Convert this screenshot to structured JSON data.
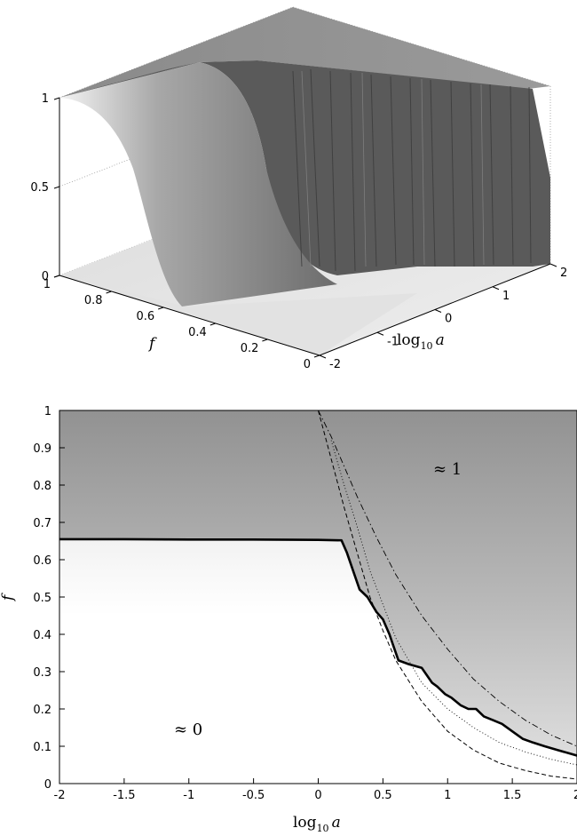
{
  "chart_data": [
    {
      "type": "surface",
      "x_axis": {
        "label_main": "log",
        "label_sub": "10",
        "label_var": "a",
        "ticks": [
          "-2",
          "-1",
          "0",
          "1",
          "2"
        ]
      },
      "y_axis": {
        "label": "f",
        "ticks": [
          "0",
          "0.2",
          "0.4",
          "0.6",
          "0.8",
          "1"
        ]
      },
      "z_axis": {
        "ticks": [
          "0",
          "0.5",
          "1"
        ]
      },
      "surface_description": [
        {
          "log10a": -2,
          "f_transition": 0.65
        },
        {
          "log10a": 0.2,
          "f_transition": 0.65
        },
        {
          "log10a": 0.5,
          "f_transition": 0.42
        },
        {
          "log10a": 1.0,
          "f_transition": 0.25
        },
        {
          "log10a": 1.5,
          "f_transition": 0.15
        },
        {
          "log10a": 2.0,
          "f_transition": 0.1
        }
      ],
      "zlim": [
        0,
        1
      ]
    },
    {
      "type": "heatmap",
      "xlabel_main": "log",
      "xlabel_sub": "10",
      "xlabel_var": "a",
      "ylabel": "f",
      "xlim": [
        -2,
        2
      ],
      "ylim": [
        0,
        1
      ],
      "xticks": [
        "-2",
        "-1.5",
        "-1",
        "-0.5",
        "0",
        "0.5",
        "1",
        "1.5",
        "2"
      ],
      "yticks": [
        "0",
        "0.1",
        "0.2",
        "0.3",
        "0.4",
        "0.5",
        "0.6",
        "0.7",
        "0.8",
        "0.9",
        "1"
      ],
      "region_labels": {
        "high": "≈ 1",
        "low": "≈ 0"
      },
      "boundary": {
        "x": [
          -2,
          -1.5,
          -1,
          -0.5,
          0,
          0.18,
          0.22,
          0.28,
          0.32,
          0.38,
          0.45,
          0.5,
          0.55,
          0.58,
          0.62,
          0.7,
          0.8,
          0.88,
          0.92,
          0.98,
          1.03,
          1.1,
          1.16,
          1.22,
          1.28,
          1.35,
          1.42,
          1.5,
          1.58,
          1.66,
          1.75,
          1.85,
          1.95,
          2.0
        ],
        "y": [
          0.655,
          0.655,
          0.654,
          0.654,
          0.653,
          0.652,
          0.62,
          0.56,
          0.52,
          0.5,
          0.46,
          0.44,
          0.4,
          0.37,
          0.33,
          0.32,
          0.31,
          0.27,
          0.26,
          0.24,
          0.23,
          0.21,
          0.2,
          0.2,
          0.18,
          0.17,
          0.16,
          0.14,
          0.12,
          0.11,
          0.1,
          0.09,
          0.08,
          0.075
        ]
      },
      "curves": [
        {
          "style": "dash-dot",
          "x": [
            0.0,
            0.1,
            0.2,
            0.3,
            0.45,
            0.6,
            0.8,
            1.0,
            1.2,
            1.4,
            1.6,
            1.8,
            2.0
          ],
          "y": [
            1.0,
            0.93,
            0.85,
            0.77,
            0.66,
            0.56,
            0.45,
            0.36,
            0.28,
            0.22,
            0.17,
            0.13,
            0.1
          ]
        },
        {
          "style": "dashed",
          "x": [
            0.0,
            0.1,
            0.2,
            0.3,
            0.4,
            0.5,
            0.6,
            0.8,
            1.0,
            1.2,
            1.4,
            1.6,
            1.8,
            2.0
          ],
          "y": [
            1.0,
            0.87,
            0.74,
            0.62,
            0.5,
            0.41,
            0.33,
            0.22,
            0.14,
            0.09,
            0.055,
            0.035,
            0.02,
            0.012
          ]
        },
        {
          "style": "dotted",
          "x": [
            0.1,
            0.2,
            0.3,
            0.4,
            0.5,
            0.6,
            0.8,
            1.0,
            1.2,
            1.4,
            1.6,
            1.8,
            2.0
          ],
          "y": [
            0.92,
            0.8,
            0.69,
            0.57,
            0.48,
            0.39,
            0.27,
            0.2,
            0.15,
            0.11,
            0.085,
            0.065,
            0.05
          ]
        }
      ],
      "colors": {
        "high": "#929292",
        "low": "#ffffff",
        "boundary": "#000000"
      }
    }
  ]
}
